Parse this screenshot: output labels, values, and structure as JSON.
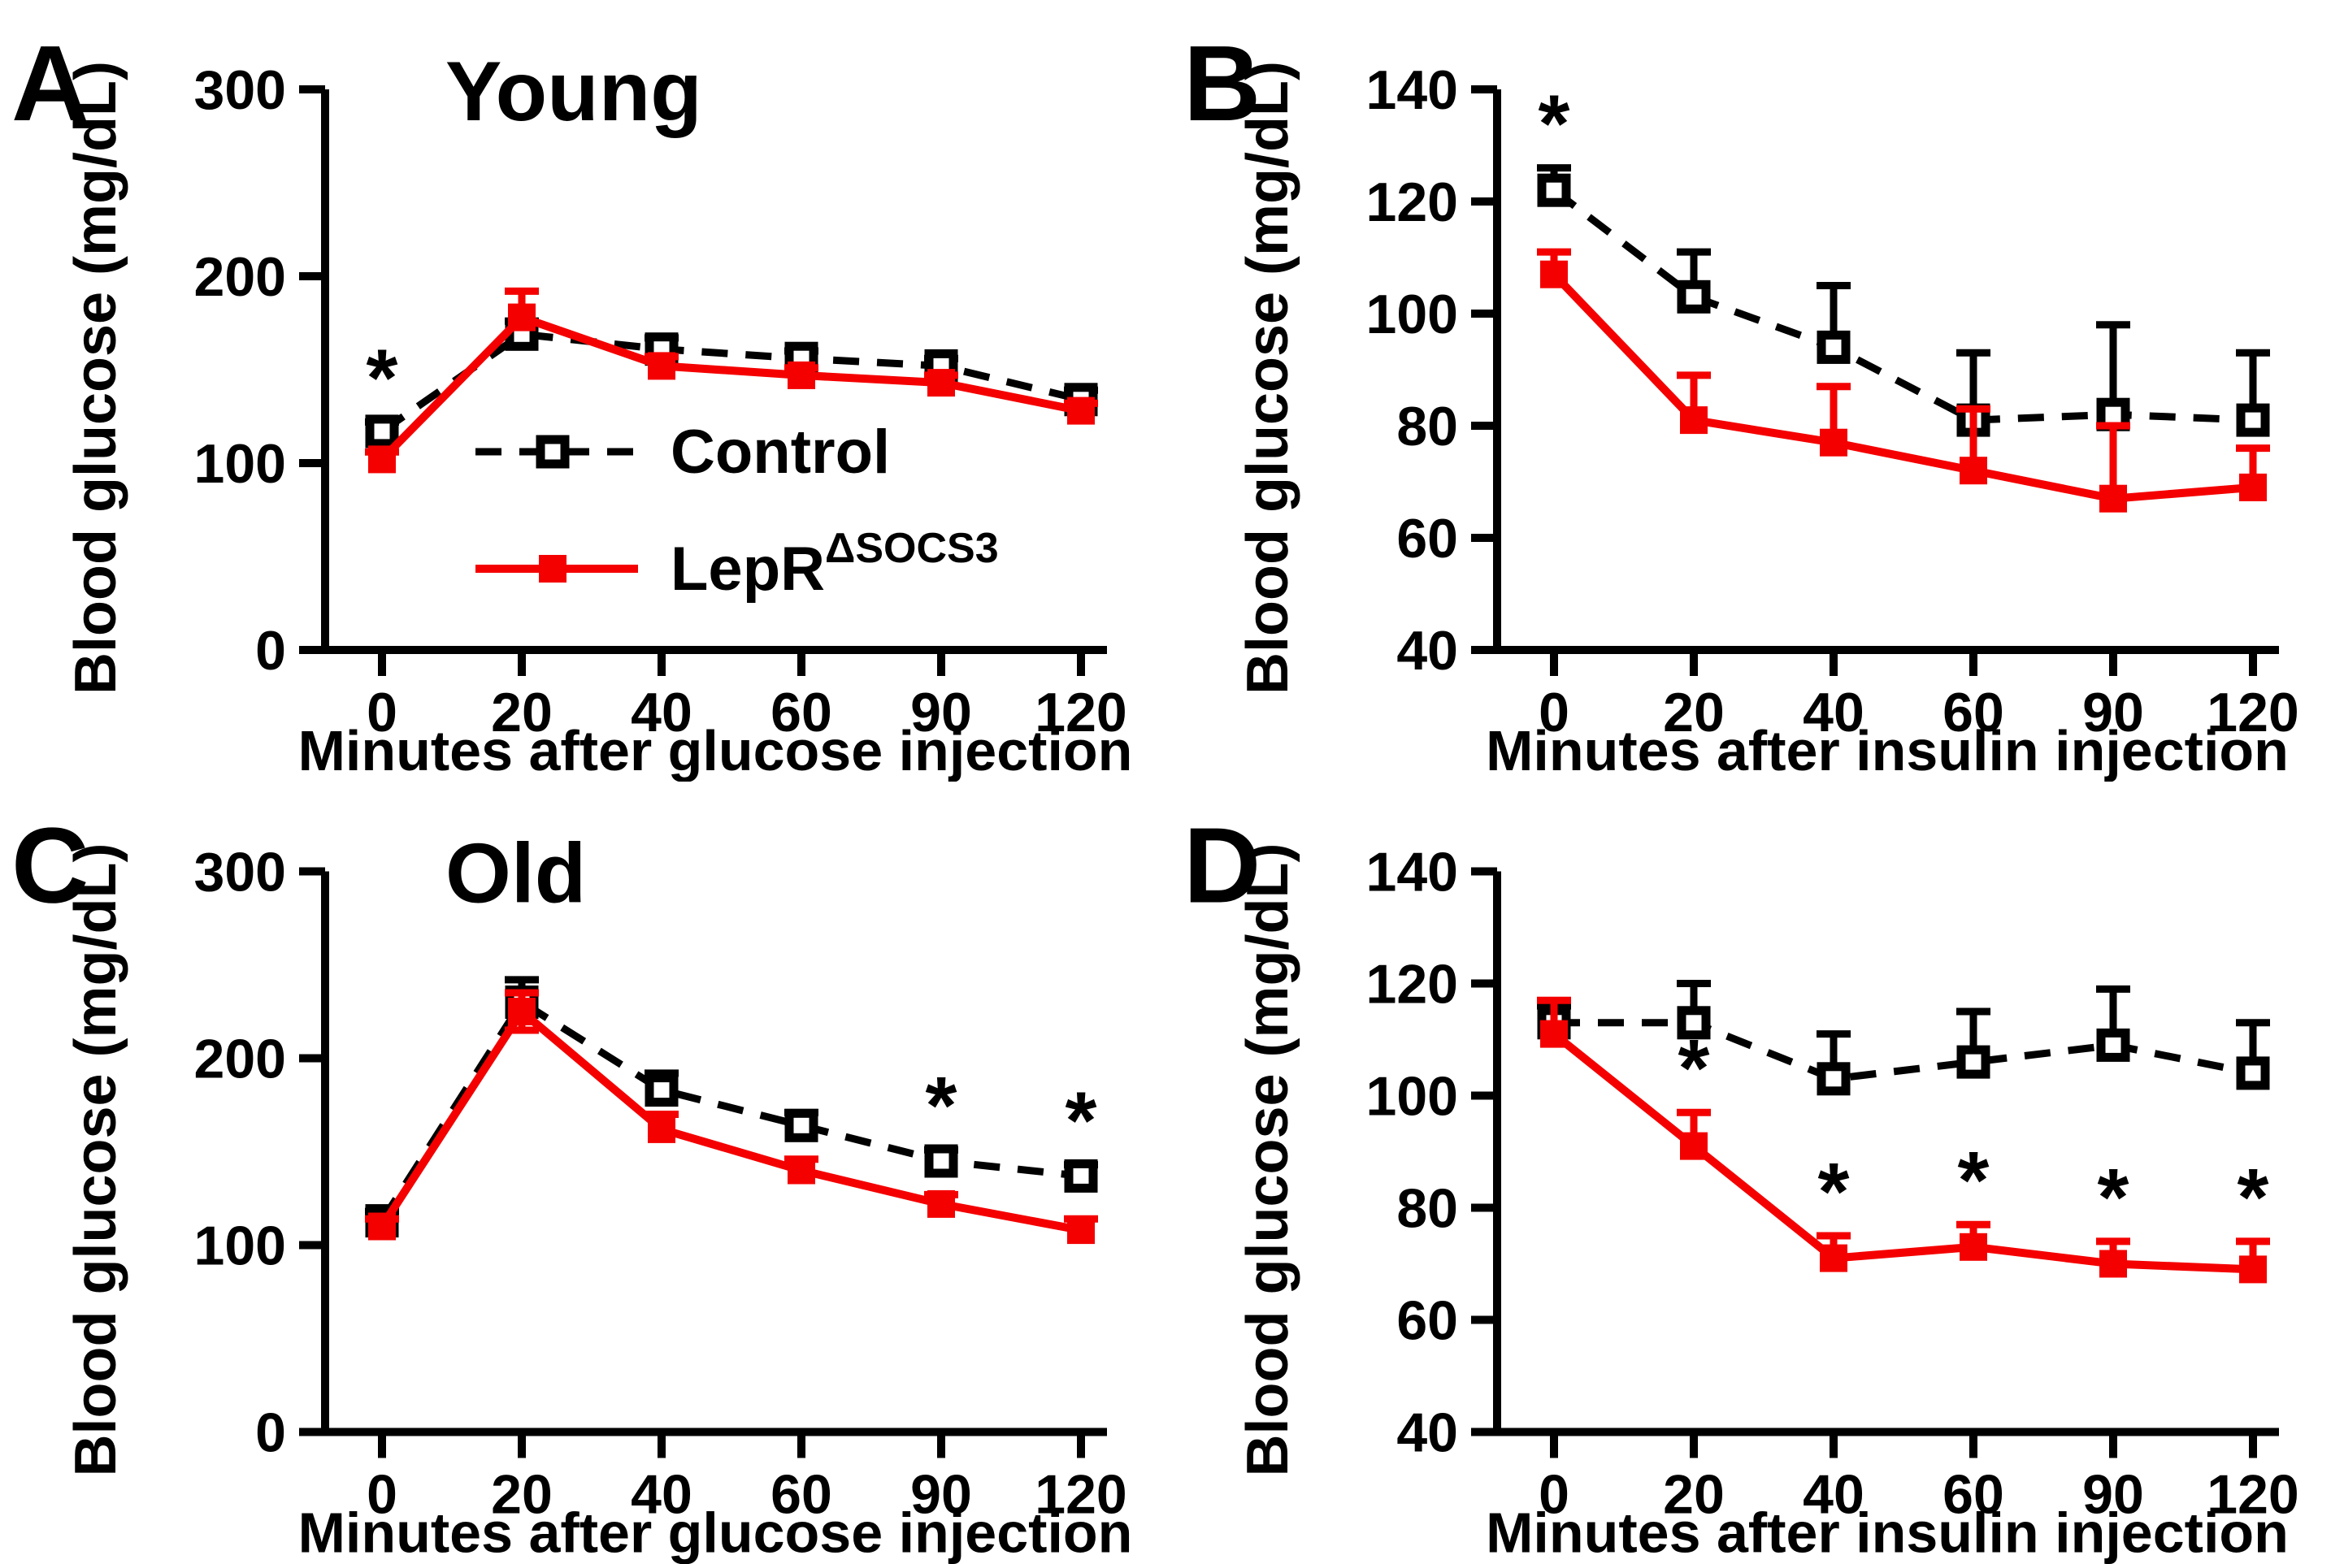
{
  "figure": {
    "background": "#ffffff",
    "black": "#000000",
    "red": "#f40000",
    "legend": {
      "control_label": "Control",
      "lepr_label": "LepR",
      "lepr_sup": "ΔSOCS3"
    }
  },
  "chart_data": [
    {
      "id": "A",
      "type": "line",
      "title": "Young",
      "ylabel": "Blood glucose (mg/dL)",
      "xlabel": "Minutes after glucose injection",
      "ylim": [
        0,
        300
      ],
      "yticks": [
        0,
        100,
        200,
        300
      ],
      "categories": [
        "0",
        "20",
        "40",
        "60",
        "90",
        "120"
      ],
      "grid": false,
      "legend_position": "inside-center",
      "show_legend": true,
      "series": [
        {
          "name": "Control",
          "key": "control",
          "line": "dashed",
          "marker": "open-square",
          "values": [
            117,
            169,
            161,
            156,
            152,
            134
          ],
          "err_up": [
            5,
            7,
            6,
            4,
            4,
            5
          ]
        },
        {
          "name": "LepRΔSOCS3",
          "key": "lepr",
          "line": "solid",
          "marker": "filled-square",
          "values": [
            102,
            178,
            152,
            147,
            143,
            128
          ],
          "err_up": [
            4,
            14,
            5,
            4,
            4,
            4
          ]
        }
      ],
      "asterisks": [
        {
          "series": "control",
          "index": 0
        }
      ]
    },
    {
      "id": "B",
      "type": "line",
      "title": "",
      "ylabel": "Blood glucose (mg/dL)",
      "xlabel": "Minutes after insulin injection",
      "ylim": [
        40,
        140
      ],
      "yticks": [
        40,
        60,
        80,
        100,
        120,
        140
      ],
      "categories": [
        "0",
        "20",
        "40",
        "60",
        "90",
        "120"
      ],
      "grid": false,
      "show_legend": false,
      "series": [
        {
          "name": "Control",
          "key": "control",
          "line": "dashed",
          "marker": "open-square",
          "values": [
            122,
            103,
            94,
            81,
            82,
            81
          ],
          "err_up": [
            4,
            8,
            11,
            12,
            16,
            12
          ]
        },
        {
          "name": "LepRΔSOCS3",
          "key": "lepr",
          "line": "solid",
          "marker": "filled-square",
          "values": [
            107,
            81,
            77,
            72,
            67,
            69
          ],
          "err_up": [
            4,
            8,
            10,
            11,
            13,
            7
          ]
        }
      ],
      "asterisks": [
        {
          "series": "control",
          "index": 0
        }
      ]
    },
    {
      "id": "C",
      "type": "line",
      "title": "Old",
      "ylabel": "Blood glucose (mg/dL)",
      "xlabel": "Minutes after glucose injection",
      "ylim": [
        0,
        300
      ],
      "yticks": [
        0,
        100,
        200,
        300
      ],
      "categories": [
        "0",
        "20",
        "40",
        "60",
        "90",
        "120"
      ],
      "grid": false,
      "show_legend": false,
      "series": [
        {
          "name": "Control",
          "key": "control",
          "line": "dashed",
          "marker": "open-square",
          "values": [
            113,
            230,
            183,
            164,
            145,
            137
          ],
          "err_up": [
            5,
            12,
            9,
            7,
            6,
            6
          ]
        },
        {
          "name": "LepRΔSOCS3",
          "key": "lepr",
          "line": "solid",
          "marker": "filled-square",
          "values": [
            110,
            225,
            162,
            140,
            122,
            108
          ],
          "err_up": [
            4,
            10,
            8,
            6,
            5,
            6
          ],
          "err_down": [
            0,
            10,
            0,
            0,
            0,
            0
          ]
        }
      ],
      "asterisks": [
        {
          "series": "control",
          "index": 4
        },
        {
          "series": "control",
          "index": 5
        }
      ]
    },
    {
      "id": "D",
      "type": "line",
      "title": "",
      "ylabel": "Blood glucose (mg/dL)",
      "xlabel": "Minutes after insulin injection",
      "ylim": [
        40,
        140
      ],
      "yticks": [
        40,
        60,
        80,
        100,
        120,
        140
      ],
      "categories": [
        "0",
        "20",
        "40",
        "60",
        "90",
        "120"
      ],
      "grid": false,
      "show_legend": false,
      "series": [
        {
          "name": "Control",
          "key": "control",
          "line": "dashed",
          "marker": "open-square",
          "values": [
            113,
            113,
            103,
            106,
            109,
            104
          ],
          "err_up": [
            3,
            7,
            8,
            9,
            10,
            9
          ]
        },
        {
          "name": "LepRΔSOCS3",
          "key": "lepr",
          "line": "solid",
          "marker": "filled-square",
          "values": [
            111,
            91,
            71,
            73,
            70,
            69
          ],
          "err_up": [
            6,
            6,
            4,
            4,
            4,
            5
          ]
        }
      ],
      "asterisks": [
        {
          "series": "lepr",
          "index": 1
        },
        {
          "series": "lepr",
          "index": 2
        },
        {
          "series": "lepr",
          "index": 3
        },
        {
          "series": "lepr",
          "index": 4
        },
        {
          "series": "lepr",
          "index": 5
        }
      ]
    }
  ]
}
